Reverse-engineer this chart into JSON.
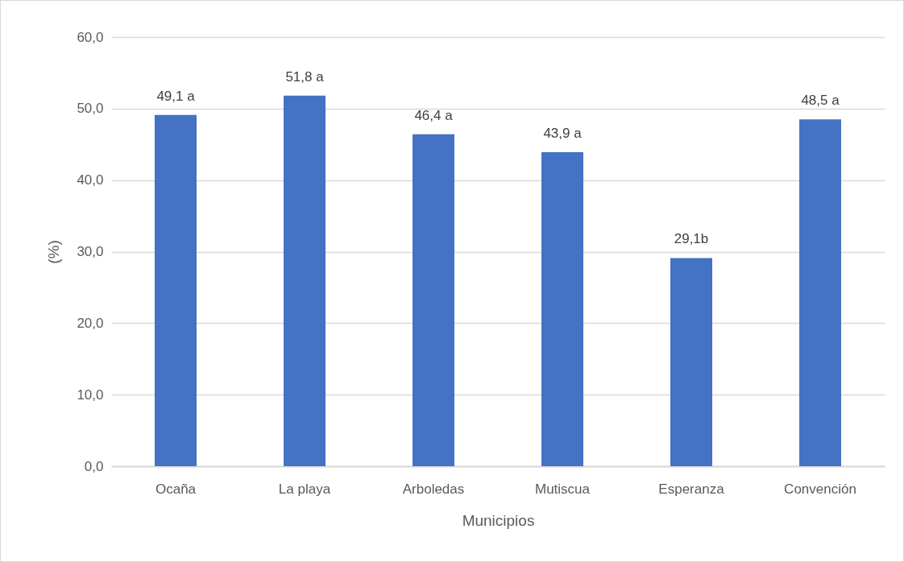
{
  "chart_data": {
    "type": "bar",
    "xlabel": "Municipios",
    "ylabel": "(%)",
    "categories": [
      "Ocaña",
      "La playa",
      "Arboledas",
      "Mutiscua",
      "Esperanza",
      "Convención"
    ],
    "values": [
      49.1,
      51.8,
      46.4,
      43.9,
      29.1,
      48.5
    ],
    "value_labels": [
      "49,1 a",
      "51,8 a",
      "46,4 a",
      "43,9 a",
      "29,1b",
      "48,5 a"
    ],
    "color": "#4472c4",
    "ylim": [
      0,
      60
    ],
    "yticks": [
      {
        "value": 0,
        "label": "0,0"
      },
      {
        "value": 10,
        "label": "10,0"
      },
      {
        "value": 20,
        "label": "20,0"
      },
      {
        "value": 30,
        "label": "30,0"
      },
      {
        "value": 40,
        "label": "40,0"
      },
      {
        "value": 50,
        "label": "50,0"
      },
      {
        "value": 60,
        "label": "60,0"
      }
    ],
    "grid": "y"
  }
}
